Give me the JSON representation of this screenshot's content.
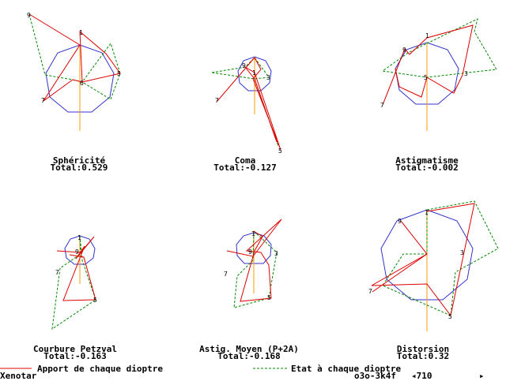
{
  "colors": {
    "polygon": "#3333cc",
    "contribution": "#dd0000",
    "state": "#008800",
    "axis": "#ff9900",
    "text": "#000000"
  },
  "panels": [
    {
      "id": "spherical",
      "title": "Sphéricité",
      "total": "Total:0.529",
      "labels": [
        "1",
        "9",
        "5",
        "7",
        "6"
      ]
    },
    {
      "id": "coma",
      "title": "Coma",
      "total": "Total:-0.127",
      "labels": [
        "1",
        "9",
        "3",
        "7",
        "5"
      ]
    },
    {
      "id": "astig",
      "title": "Astigmatisme",
      "total": "Total:-0.002",
      "labels": [
        "1",
        "9",
        "3",
        "7",
        "5"
      ]
    },
    {
      "id": "petzval",
      "title": "Courbure Petzval",
      "total": "Total:-0.163",
      "labels": [
        "1",
        "9",
        "7",
        "5"
      ]
    },
    {
      "id": "astigmean",
      "title": "Astig. Moyen (P+2A)",
      "total": "Total:-0.168",
      "labels": [
        "1",
        "9",
        "3",
        "7",
        "5"
      ]
    },
    {
      "id": "distortion",
      "title": "Distorsion",
      "total": "Total:0.32",
      "labels": [
        "1",
        "9",
        "3",
        "7",
        "5"
      ]
    }
  ],
  "legend": {
    "contribution_label": "Apport de chaque dioptre",
    "state_label": "Etat à chaque dioptre"
  },
  "status": {
    "app_name": "Xenotar",
    "code": "o3o-3k4f",
    "marker": "◂710",
    "arrow": "▸"
  }
}
